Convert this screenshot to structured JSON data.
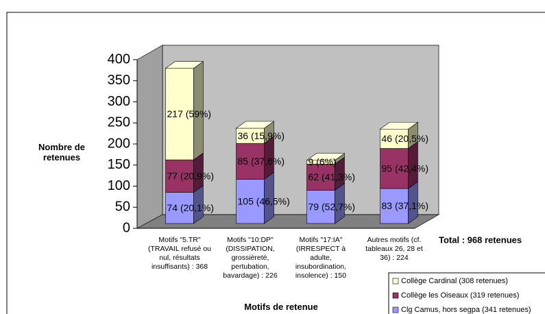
{
  "chart_data": {
    "type": "bar3d_stacked",
    "xlabel": "Motifs de retenue",
    "ylabel": "Nombre de retenues",
    "annotation": "Total : 968 retenues",
    "categories": [
      "Motifs \"5.TR\" (TRAVAIL refusé ou nul, résultats insuffisants) : 368",
      "Motifs \"10:DP\" (DISSIPATION, grossièreté, pertubation, bavardage) : 226",
      "Motifs \"17:IA\" (IRRESPECT à adulte, insubordination, insolence) : 150",
      "Autres motifs (cf. tableaux 26, 28 et 36) : 224"
    ],
    "series": [
      {
        "name": "Clg Camus, hors segpa (341 retenues)",
        "color": "#9999ff",
        "values": [
          74,
          105,
          79,
          83
        ],
        "value_labels": [
          "74 (20,1%)",
          "105 (46,5%)",
          "79 (52,7%)",
          "83 (37,1%)"
        ]
      },
      {
        "name": "Collège les Oiseaux (319 retenues)",
        "color": "#993366",
        "values": [
          77,
          85,
          62,
          95
        ],
        "value_labels": [
          "77 (20,9%)",
          "85 (37,6%)",
          "62 (41,3%)",
          "95 (42,4%)"
        ]
      },
      {
        "name": "Collège Cardinal (308 retenues)",
        "color": "#ffffcc",
        "values": [
          217,
          36,
          9,
          46
        ],
        "value_labels": [
          "217 (59%)",
          "36 (15,9%)",
          "9 (6%)",
          "46 (20,5%)"
        ]
      }
    ],
    "ylim": [
      0,
      400
    ],
    "yticks": [
      0,
      50,
      100,
      150,
      200,
      250,
      300,
      350,
      400
    ],
    "legend": "bottom-right"
  }
}
